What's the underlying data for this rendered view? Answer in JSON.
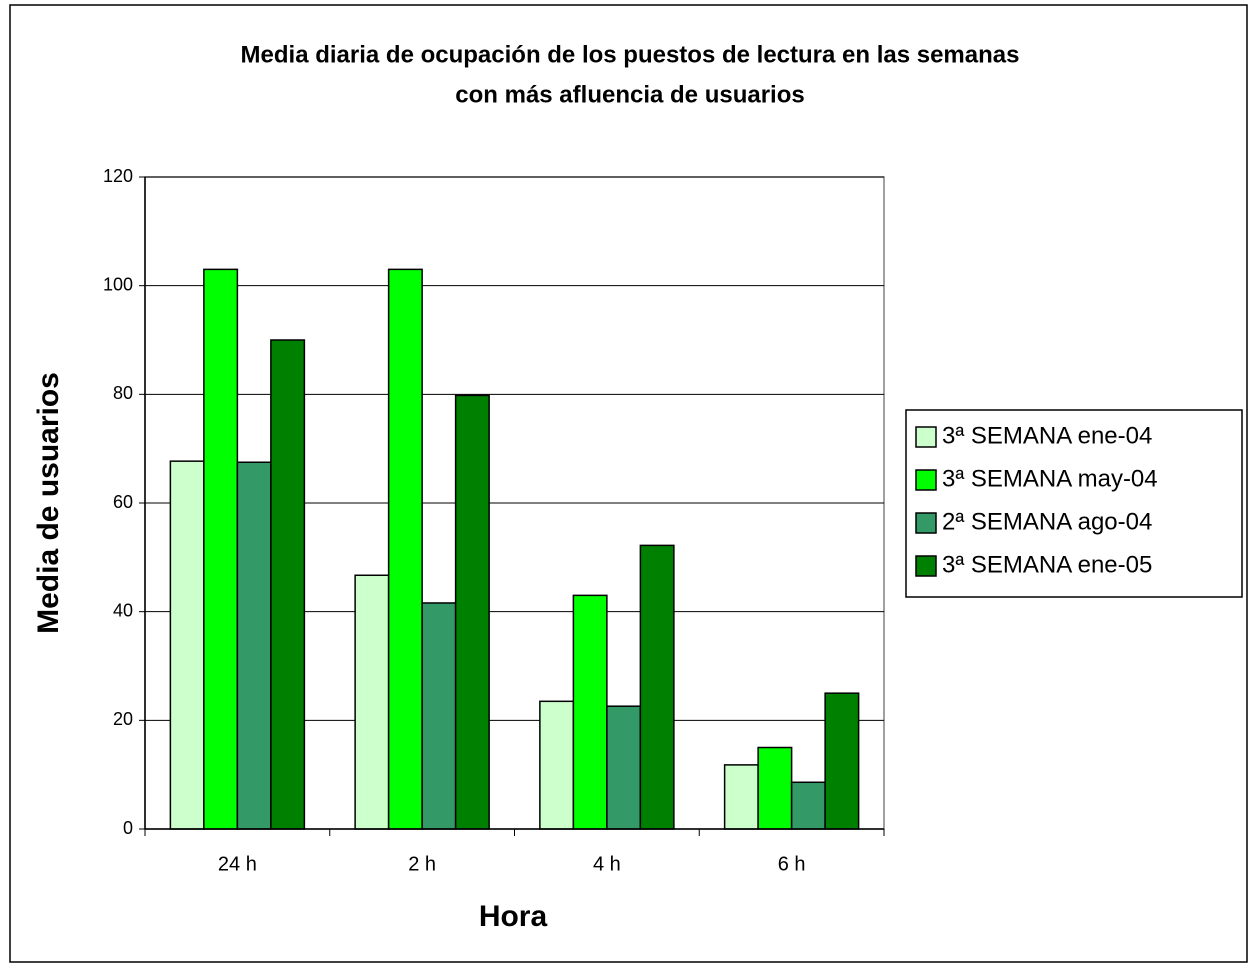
{
  "chart_data": {
    "type": "bar",
    "title": [
      "Media diaria de ocupación de los puestos de lectura en las semanas",
      "con más afluencia de usuarios"
    ],
    "x_label": "Hora",
    "y_label": "Media de usuarios",
    "categories": [
      "24 h",
      "2 h",
      "4 h",
      "6 h"
    ],
    "series": [
      {
        "name": "3ª SEMANA ene-04",
        "color": "#ccffcc",
        "values": [
          67.7,
          46.7,
          23.5,
          11.8
        ]
      },
      {
        "name": "3ª SEMANA may-04",
        "color": "#00ff00",
        "values": [
          103,
          103,
          43,
          15
        ]
      },
      {
        "name": "2ª SEMANA ago-04",
        "color": "#339966",
        "values": [
          67.5,
          41.6,
          22.6,
          8.6
        ]
      },
      {
        "name": "3ª SEMANA ene-05",
        "color": "#008000",
        "values": [
          90,
          79.8,
          52.2,
          25
        ]
      }
    ],
    "ylim": [
      0,
      120
    ],
    "yticks": [
      0,
      20,
      40,
      60,
      80,
      100,
      120
    ],
    "grid": true,
    "legend": "right"
  }
}
